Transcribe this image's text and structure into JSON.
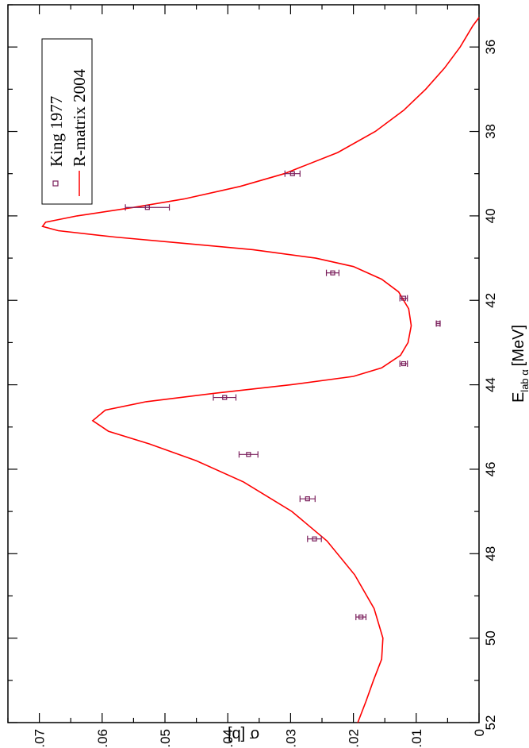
{
  "chart_data": {
    "type": "scatter",
    "orientation": "rotated-90-clockwise",
    "xlabel_main": "E",
    "xlabel_sub": "lab α",
    "xlabel_unit": "[MeV]",
    "ylabel": "σ [b]",
    "xlim": [
      35,
      52
    ],
    "ylim": [
      0,
      0.075
    ],
    "x_ticks": [
      "36",
      "38",
      "40",
      "42",
      "44",
      "46",
      "48",
      "50",
      "52"
    ],
    "y_ticks": [
      "0",
      "0.01",
      "0.02",
      "0.03",
      "0.04",
      "0.05",
      "0.06",
      "0.07"
    ],
    "legend_position": "top-left",
    "series": [
      {
        "name": "King 1977",
        "kind": "points",
        "color": "#7a1f5c",
        "points": [
          {
            "x": 39.0,
            "y": 0.0297,
            "err": 0.0012
          },
          {
            "x": 39.8,
            "y": 0.0528,
            "err": 0.0035
          },
          {
            "x": 41.35,
            "y": 0.0233,
            "err": 0.001
          },
          {
            "x": 41.95,
            "y": 0.012,
            "err": 0.0006
          },
          {
            "x": 42.55,
            "y": 0.0065,
            "err": 0.0003
          },
          {
            "x": 43.5,
            "y": 0.012,
            "err": 0.0006
          },
          {
            "x": 44.3,
            "y": 0.0405,
            "err": 0.0018
          },
          {
            "x": 45.65,
            "y": 0.0367,
            "err": 0.0015
          },
          {
            "x": 46.7,
            "y": 0.0273,
            "err": 0.0012
          },
          {
            "x": 47.65,
            "y": 0.0262,
            "err": 0.0011
          },
          {
            "x": 49.5,
            "y": 0.0188,
            "err": 0.0008
          }
        ]
      },
      {
        "name": "R-matrix 2004",
        "kind": "curve",
        "color": "#ff0000",
        "points": [
          [
            35.3,
            0.0
          ],
          [
            35.5,
            0.001
          ],
          [
            36.0,
            0.003
          ],
          [
            36.5,
            0.0055
          ],
          [
            37.0,
            0.0085
          ],
          [
            37.5,
            0.012
          ],
          [
            38.0,
            0.0165
          ],
          [
            38.5,
            0.0225
          ],
          [
            39.0,
            0.031
          ],
          [
            39.3,
            0.038
          ],
          [
            39.6,
            0.047
          ],
          [
            39.8,
            0.055
          ],
          [
            40.0,
            0.064
          ],
          [
            40.15,
            0.069
          ],
          [
            40.25,
            0.0695
          ],
          [
            40.35,
            0.067
          ],
          [
            40.5,
            0.058
          ],
          [
            40.65,
            0.047
          ],
          [
            40.8,
            0.036
          ],
          [
            41.0,
            0.026
          ],
          [
            41.2,
            0.02
          ],
          [
            41.5,
            0.0155
          ],
          [
            41.8,
            0.0128
          ],
          [
            42.2,
            0.0112
          ],
          [
            42.6,
            0.0108
          ],
          [
            43.0,
            0.0113
          ],
          [
            43.3,
            0.0125
          ],
          [
            43.6,
            0.0155
          ],
          [
            43.8,
            0.02
          ],
          [
            44.0,
            0.03
          ],
          [
            44.2,
            0.042
          ],
          [
            44.4,
            0.053
          ],
          [
            44.6,
            0.0595
          ],
          [
            44.85,
            0.0615
          ],
          [
            45.1,
            0.059
          ],
          [
            45.4,
            0.0525
          ],
          [
            45.8,
            0.045
          ],
          [
            46.3,
            0.0375
          ],
          [
            47.0,
            0.0298
          ],
          [
            47.7,
            0.0242
          ],
          [
            48.5,
            0.0198
          ],
          [
            49.3,
            0.0167
          ],
          [
            50.0,
            0.0153
          ],
          [
            50.5,
            0.0155
          ],
          [
            51.0,
            0.0168
          ],
          [
            51.5,
            0.018
          ],
          [
            52.0,
            0.0193
          ]
        ]
      }
    ]
  }
}
